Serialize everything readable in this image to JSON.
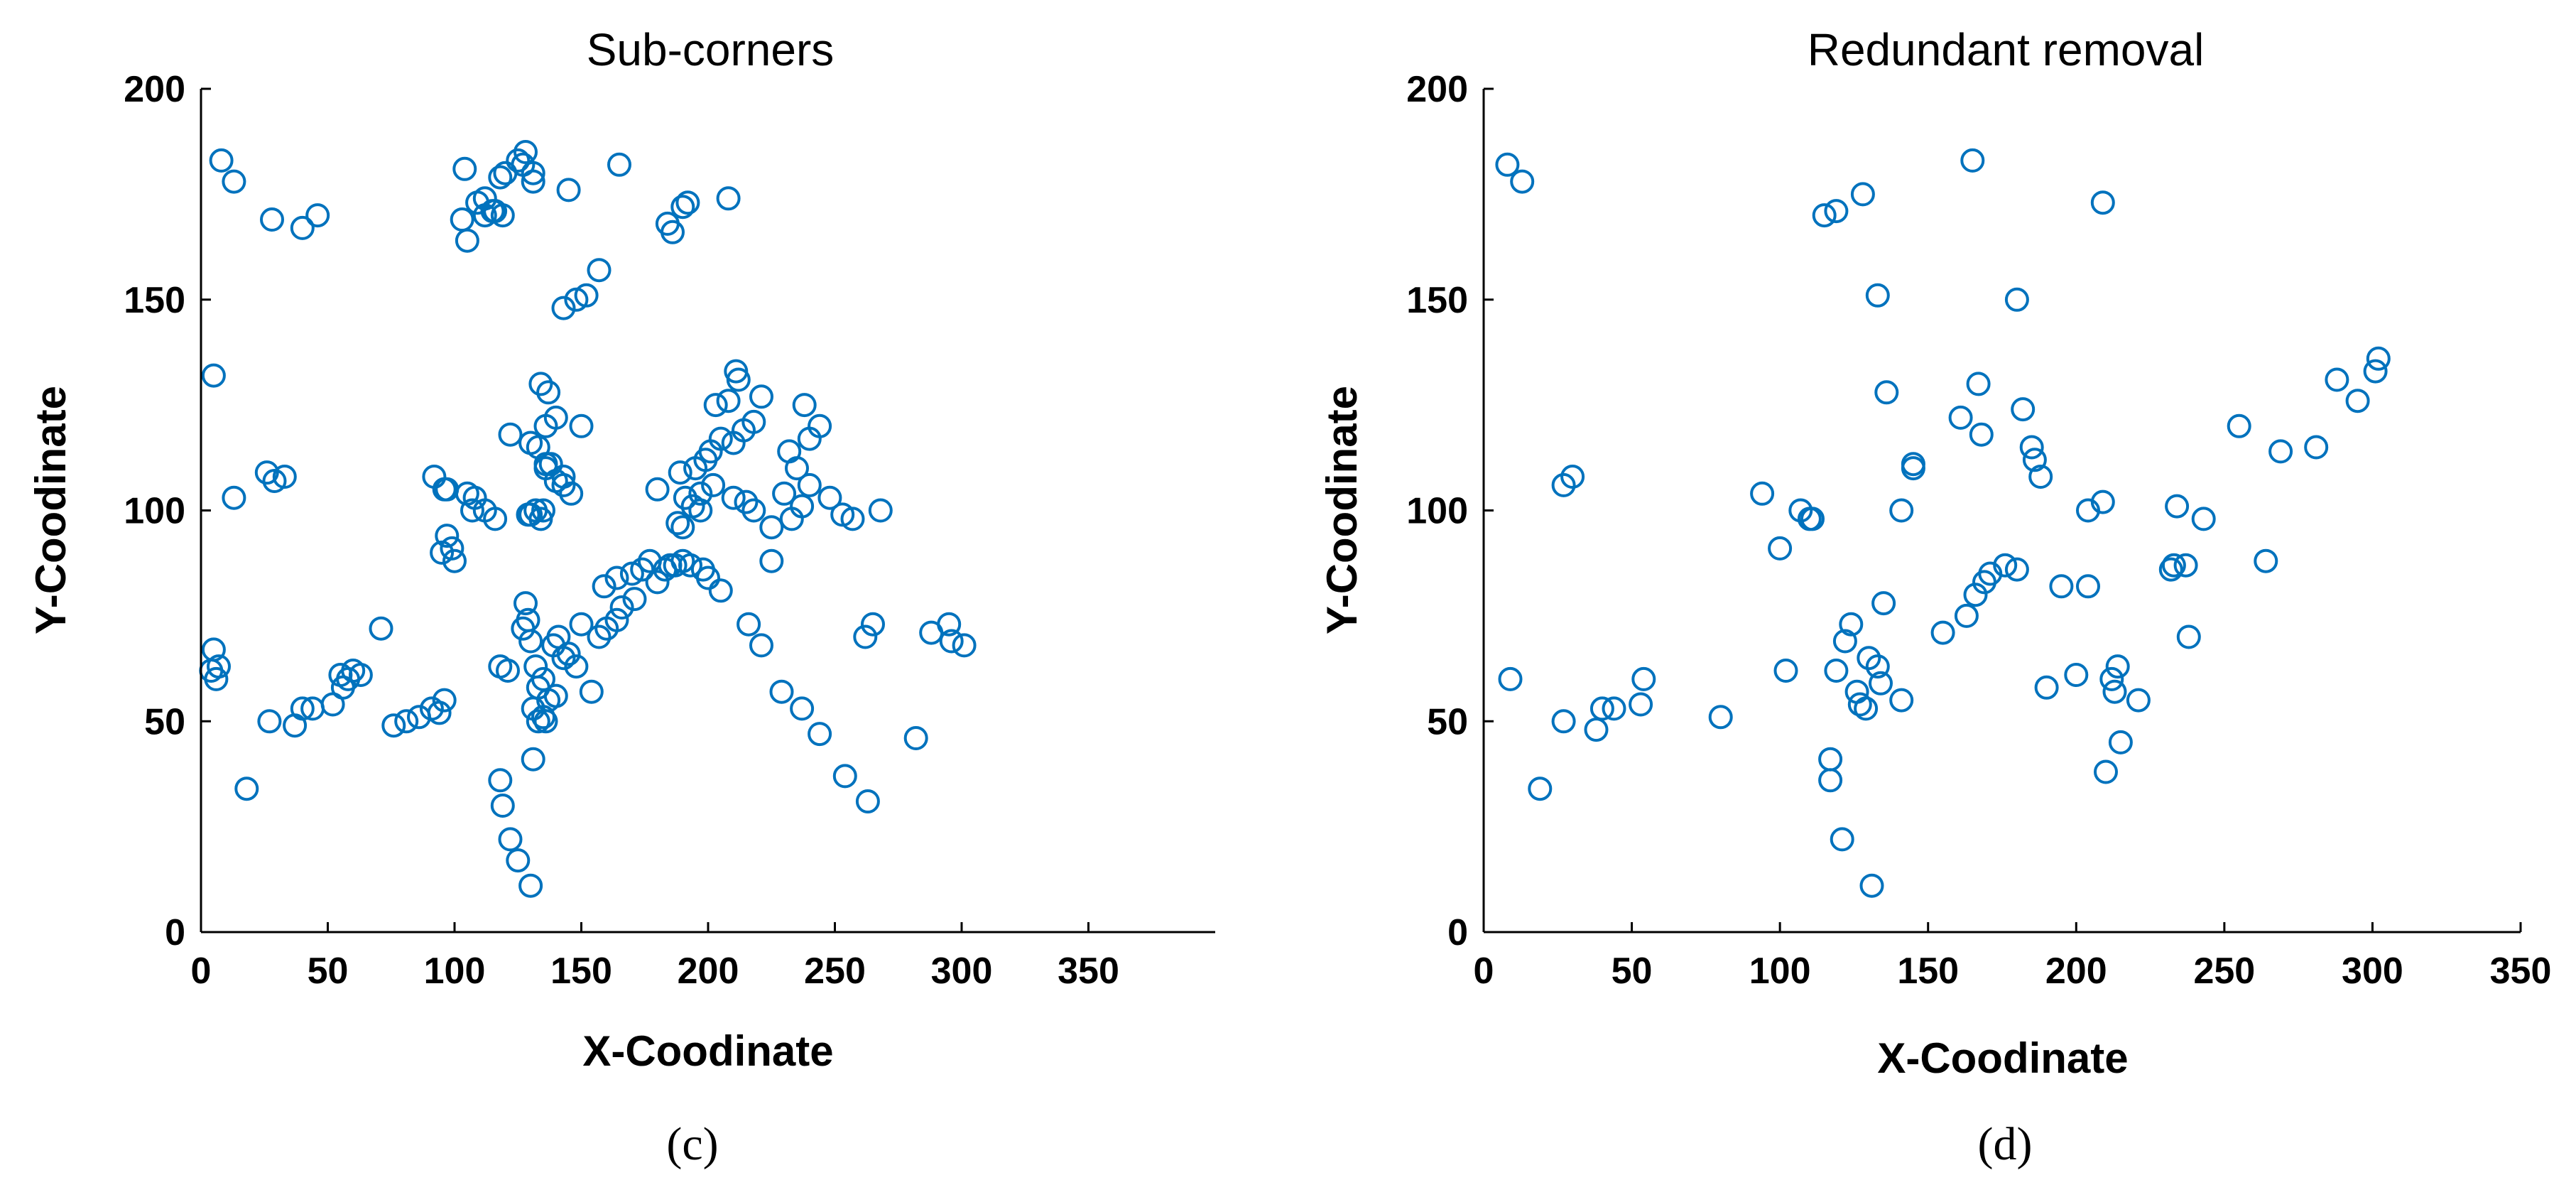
{
  "chart_data": [
    {
      "type": "scatter",
      "panel": "c",
      "title": "Sub-corners",
      "xlabel": "X-Coodinate",
      "ylabel": "Y-Coodinate",
      "caption": "(c)",
      "xlim": [
        0,
        400
      ],
      "ylim": [
        0,
        200
      ],
      "xticks": [
        0,
        50,
        100,
        150,
        200,
        250,
        300,
        350
      ],
      "yticks": [
        0,
        50,
        100,
        150,
        200
      ],
      "marker": "circle-open",
      "color": "#0072BD",
      "grid": false,
      "x": [
        8,
        13,
        28,
        5,
        5,
        7,
        4,
        6,
        18,
        27,
        37,
        40,
        44,
        52,
        56,
        58,
        60,
        55,
        63,
        71,
        76,
        81,
        86,
        91,
        94,
        96,
        97,
        95,
        100,
        99,
        105,
        108,
        112,
        116,
        121,
        118,
        118,
        119,
        122,
        125,
        130,
        131,
        130,
        127,
        128,
        129,
        131,
        133,
        135,
        136,
        132,
        133,
        135,
        140,
        137,
        139,
        141,
        145,
        150,
        143,
        148,
        154,
        157,
        160,
        164,
        166,
        171,
        180,
        183,
        187,
        200,
        205,
        216,
        221,
        229,
        237,
        244,
        254,
        263,
        282,
        288,
        295,
        296,
        301,
        262,
        265,
        268,
        257,
        253,
        248,
        240,
        237,
        233,
        225,
        218,
        215,
        210,
        197,
        190,
        185,
        177,
        170,
        164,
        159,
        174,
        180,
        189,
        195,
        199,
        201,
        205,
        210,
        214,
        218,
        221,
        212,
        211,
        208,
        203,
        202,
        197,
        194,
        191,
        188,
        190,
        193,
        198,
        225,
        230,
        232,
        235,
        240,
        238,
        244,
        150,
        143,
        138,
        136,
        140,
        143,
        146,
        129,
        132,
        130,
        134,
        137,
        136,
        135,
        143,
        148,
        152,
        157,
        145,
        131,
        120,
        125,
        128,
        131,
        115,
        112,
        116,
        119,
        122,
        130,
        133,
        136,
        140,
        134,
        103,
        105,
        104,
        109,
        112,
        118,
        127,
        29,
        33,
        26,
        13,
        40,
        46,
        96,
        92,
        97,
        107,
        192,
        190,
        186,
        184,
        165,
        208
      ],
      "y": [
        183,
        178,
        169,
        132,
        67,
        63,
        62,
        60,
        34,
        50,
        49,
        53,
        53,
        54,
        58,
        60,
        62,
        61,
        61,
        72,
        49,
        50,
        51,
        53,
        52,
        55,
        94,
        90,
        88,
        91,
        104,
        103,
        100,
        98,
        62,
        63,
        36,
        30,
        22,
        17,
        11,
        41,
        69,
        72,
        78,
        74,
        53,
        50,
        51,
        50,
        63,
        58,
        60,
        56,
        55,
        68,
        70,
        66,
        73,
        65,
        63,
        57,
        70,
        72,
        74,
        77,
        79,
        83,
        86,
        87,
        84,
        81,
        73,
        68,
        57,
        53,
        47,
        37,
        31,
        46,
        71,
        73,
        69,
        68,
        70,
        73,
        100,
        98,
        99,
        103,
        106,
        101,
        98,
        96,
        100,
        102,
        103,
        100,
        88,
        87,
        88,
        85,
        84,
        82,
        86,
        105,
        109,
        110,
        112,
        114,
        117,
        116,
        119,
        121,
        127,
        131,
        133,
        126,
        125,
        106,
        104,
        101,
        103,
        97,
        96,
        87,
        86,
        88,
        104,
        114,
        110,
        117,
        125,
        120,
        120,
        108,
        111,
        110,
        107,
        106,
        104,
        99,
        100,
        99,
        98,
        128,
        120,
        100,
        148,
        150,
        151,
        157,
        176,
        178,
        180,
        183,
        185,
        180,
        171,
        170,
        171,
        170,
        118,
        116,
        115,
        111,
        122,
        130,
        169,
        164,
        181,
        173,
        174,
        179,
        182,
        107,
        108,
        109,
        103,
        167,
        170,
        105,
        108,
        105,
        100,
        173,
        172,
        166,
        168,
        182,
        174
      ]
    },
    {
      "type": "scatter",
      "panel": "d",
      "title": "Redundant removal",
      "xlabel": "X-Coodinate",
      "ylabel": "Y-Coodinate",
      "caption": "(d)",
      "xlim": [
        0,
        350
      ],
      "ylim": [
        0,
        200
      ],
      "xticks": [
        0,
        50,
        100,
        150,
        200,
        250,
        300,
        350
      ],
      "yticks": [
        0,
        50,
        100,
        150,
        200
      ],
      "marker": "circle-open",
      "color": "#0072BD",
      "grid": false,
      "x": [
        8,
        13,
        115,
        119,
        128,
        165,
        209,
        133,
        180,
        27,
        30,
        94,
        100,
        107,
        111,
        136,
        141,
        145,
        145,
        161,
        167,
        168,
        182,
        185,
        186,
        188,
        204,
        209,
        234,
        237,
        243,
        255,
        264,
        269,
        281,
        288,
        295,
        301,
        302,
        9,
        19,
        27,
        38,
        40,
        44,
        53,
        54,
        80,
        102,
        117,
        117,
        119,
        121,
        122,
        124,
        126,
        127,
        129,
        131,
        133,
        134,
        141,
        155,
        163,
        166,
        169,
        171,
        176,
        180,
        195,
        200,
        204,
        213,
        215,
        221,
        232,
        233,
        238,
        130,
        110,
        210,
        212,
        214,
        190,
        135
      ],
      "y": [
        182,
        178,
        170,
        171,
        175,
        183,
        173,
        151,
        150,
        106,
        108,
        104,
        91,
        100,
        98,
        128,
        100,
        111,
        110,
        122,
        130,
        118,
        124,
        115,
        112,
        108,
        100,
        102,
        101,
        87,
        98,
        120,
        88,
        114,
        115,
        131,
        126,
        133,
        136,
        60,
        34,
        50,
        48,
        53,
        53,
        54,
        60,
        51,
        62,
        41,
        36,
        62,
        22,
        69,
        73,
        57,
        54,
        53,
        11,
        63,
        59,
        55,
        71,
        75,
        80,
        83,
        85,
        87,
        86,
        82,
        61,
        82,
        57,
        45,
        55,
        86,
        87,
        70,
        65,
        98,
        38,
        60,
        63,
        58,
        78
      ]
    }
  ]
}
